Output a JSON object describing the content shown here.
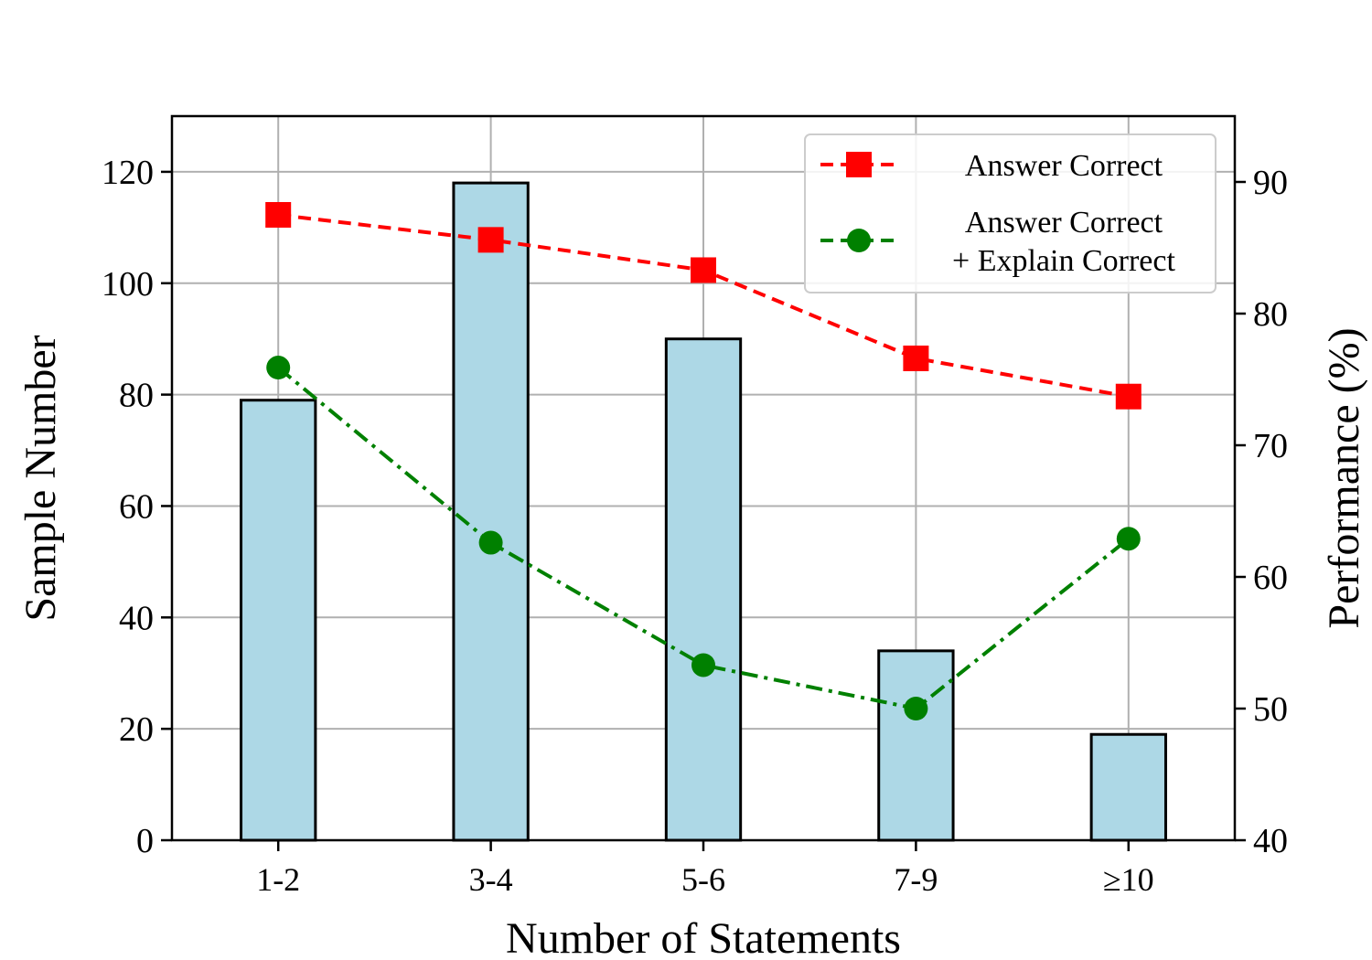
{
  "chart_data": {
    "type": "bar+line",
    "categories": [
      "1-2",
      "3-4",
      "5-6",
      "7-9",
      "≥10"
    ],
    "bars": {
      "values": [
        79,
        118,
        90,
        34,
        19
      ],
      "color": "#add8e6",
      "edgecolor": "#000000"
    },
    "series": [
      {
        "name": "Answer Correct",
        "values": [
          87.5,
          85.6,
          83.3,
          76.6,
          73.7
        ],
        "color": "#ff0000",
        "marker": "square",
        "linestyle": "dashed"
      },
      {
        "name": "Answer Correct\n+ Explain Correct",
        "values": [
          75.9,
          62.6,
          53.3,
          50.0,
          62.9
        ],
        "color": "#008000",
        "marker": "circle",
        "linestyle": "dashdot"
      }
    ],
    "xlabel": "Number of Statements",
    "ylabel_left": "Sample Number",
    "ylabel_right": "Performance (%)",
    "ylim_left": [
      0,
      130
    ],
    "ylim_right": [
      40,
      95
    ],
    "yticks_left": [
      0,
      20,
      40,
      60,
      80,
      100,
      120
    ],
    "yticks_right": [
      40,
      50,
      60,
      70,
      80,
      90
    ],
    "grid": true,
    "legend_position": "top-right"
  }
}
